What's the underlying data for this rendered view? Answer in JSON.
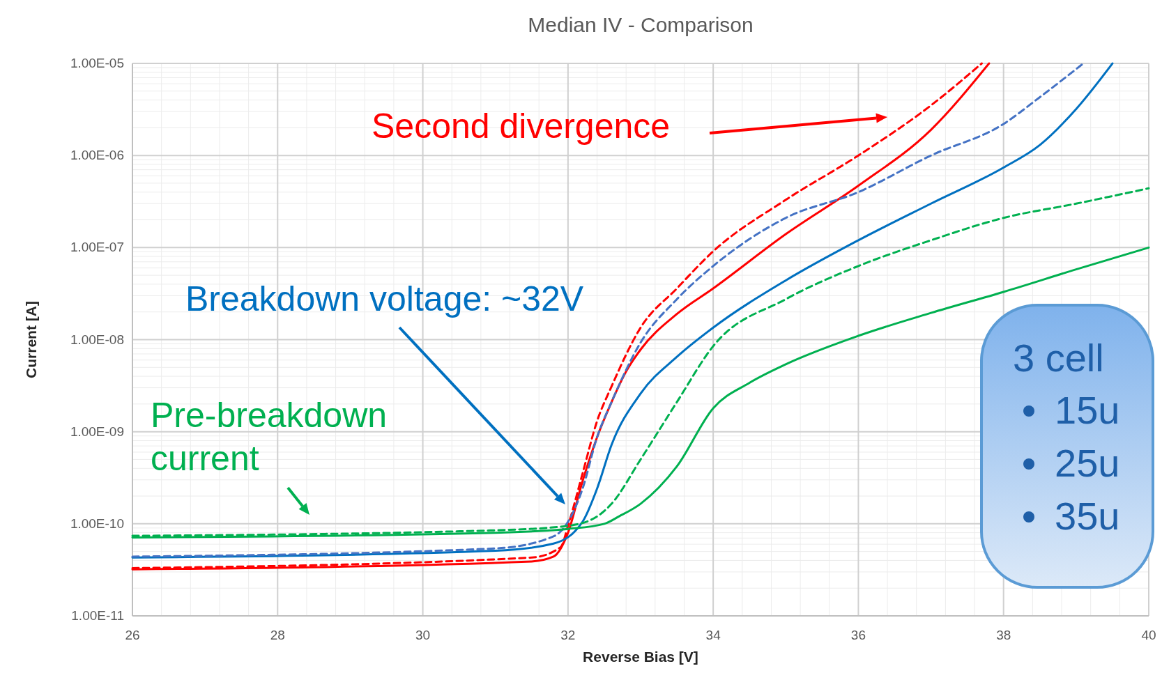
{
  "chart_data": {
    "type": "line",
    "title": "Median IV - Comparison",
    "xlabel": "Reverse Bias [V]",
    "ylabel": "Current [A]",
    "log": "y",
    "grid": true,
    "marker": "none",
    "xlim": [
      26,
      40
    ],
    "xticks": [
      26,
      28,
      30,
      32,
      34,
      36,
      38,
      40
    ],
    "ylim": [
      1e-11,
      1e-05
    ],
    "yticks": [
      {
        "value": 1e-11,
        "label": "1.00E-11"
      },
      {
        "value": 1e-10,
        "label": "1.00E-10"
      },
      {
        "value": 1e-09,
        "label": "1.00E-09"
      },
      {
        "value": 1e-08,
        "label": "1.00E-08"
      },
      {
        "value": 1e-07,
        "label": "1.00E-07"
      },
      {
        "value": 1e-06,
        "label": "1.00E-06"
      },
      {
        "value": 1e-05,
        "label": "1.00E-05"
      }
    ],
    "series": [
      {
        "color": "#ff0000",
        "line_style": "solid",
        "x": [
          26,
          31.5,
          31.8,
          32,
          32.2,
          32.4,
          32.6,
          32.8,
          33,
          33.5,
          34,
          35,
          36,
          37,
          37.8
        ],
        "values": [
          3.2e-11,
          3.9e-11,
          4.4e-11,
          8e-11,
          2.9e-10,
          8.7e-10,
          2.1e-09,
          4.5e-09,
          7.8e-09,
          1.9e-08,
          3.6e-08,
          1.4e-07,
          4.7e-07,
          1.9e-06,
          1e-05
        ]
      },
      {
        "color": "#ff0000",
        "line_style": "dashed",
        "x": [
          26,
          31.5,
          31.9,
          32,
          32.2,
          32.4,
          32.6,
          33,
          33.5,
          34,
          35,
          36,
          37,
          37.7
        ],
        "values": [
          3.3e-11,
          4.3e-11,
          5.6e-11,
          9.5e-11,
          3.5e-10,
          1.3e-09,
          3.1e-09,
          1.35e-08,
          3.6e-08,
          9.1e-08,
          3.3e-07,
          1e-06,
          3.5e-06,
          1e-05
        ]
      },
      {
        "color": "#0070c0",
        "line_style": "solid",
        "x": [
          26,
          31,
          31.8,
          32.2,
          32.4,
          32.6,
          33,
          33.5,
          34,
          35,
          36,
          37,
          38,
          38.5,
          39,
          39.5
        ],
        "values": [
          4.3e-11,
          5.1e-11,
          6.1e-11,
          1.05e-10,
          2.4e-10,
          7.2e-10,
          2.6e-09,
          6.5e-09,
          1.35e-08,
          4.4e-08,
          1.2e-07,
          3e-07,
          7.4e-07,
          1.3e-06,
          3.2e-06,
          1e-05
        ]
      },
      {
        "color": "#4472c4",
        "line_style": "dashed",
        "x": [
          26,
          31,
          31.8,
          32,
          32.2,
          32.4,
          32.6,
          33,
          33.5,
          34,
          35,
          36,
          37,
          38,
          38.5,
          39.1
        ],
        "values": [
          4.4e-11,
          5.4e-11,
          7.3e-11,
          1.05e-10,
          2.4e-10,
          8.7e-10,
          2.1e-09,
          9.3e-09,
          2.75e-08,
          6.3e-08,
          2.1e-07,
          4e-07,
          1e-06,
          2.2e-06,
          4.3e-06,
          1e-05
        ]
      },
      {
        "color": "#00b050",
        "line_style": "solid",
        "x": [
          26,
          31,
          32,
          32.5,
          32.7,
          33,
          33.5,
          34,
          34.5,
          35,
          36,
          37,
          38,
          39,
          40
        ],
        "values": [
          7.1e-11,
          8e-11,
          8.8e-11,
          1e-10,
          1.2e-10,
          1.65e-10,
          4.2e-10,
          1.8e-09,
          3.4e-09,
          5.4e-09,
          1.1e-08,
          1.95e-08,
          3.3e-08,
          5.8e-08,
          1e-07
        ]
      },
      {
        "color": "#00b050",
        "line_style": "dashed",
        "x": [
          26,
          31,
          32,
          32.4,
          32.6,
          33,
          33.5,
          34,
          35,
          36,
          37,
          38,
          39,
          40
        ],
        "values": [
          7.4e-11,
          8.5e-11,
          9.5e-11,
          1.2e-10,
          1.65e-10,
          5e-10,
          2.1e-09,
          8.5e-09,
          2.75e-08,
          6.3e-08,
          1.2e-07,
          2.1e-07,
          3e-07,
          4.4e-07
        ]
      }
    ],
    "annotations": [
      "Second divergence",
      "Breakdown voltage: ~32V",
      "Pre-breakdown current",
      "3 cell",
      "15u",
      "25u",
      "35u"
    ]
  }
}
